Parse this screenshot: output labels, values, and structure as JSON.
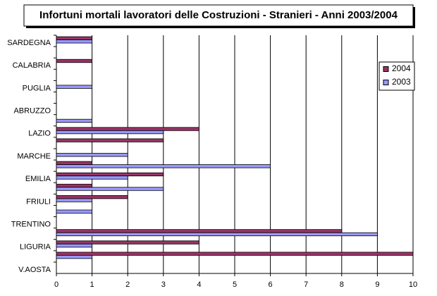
{
  "chart_data": {
    "type": "bar",
    "orientation": "horizontal",
    "title": "Infortuni mortali lavoratori delle Costruzioni - Stranieri - Anni 2003/2004",
    "categories": [
      "SARDEGNA",
      null,
      "CALABRIA",
      null,
      "PUGLIA",
      null,
      "ABRUZZO",
      null,
      "LAZIO",
      null,
      "MARCHE",
      null,
      "EMILIA",
      null,
      "FRIULI",
      null,
      "TRENTINO",
      null,
      "LIGURIA",
      null,
      "V.AOSTA"
    ],
    "series": [
      {
        "name": "2004",
        "color": "#993366",
        "values": [
          1,
          0,
          1,
          0,
          0,
          0,
          0,
          0,
          4,
          3,
          0,
          1,
          3,
          1,
          2,
          0,
          0,
          8,
          4,
          10,
          0
        ]
      },
      {
        "name": "2003",
        "color": "#9999ff",
        "values": [
          1,
          0,
          0,
          0,
          1,
          0,
          0,
          1,
          3,
          0,
          2,
          6,
          2,
          3,
          1,
          1,
          0,
          9,
          1,
          1,
          0
        ]
      }
    ],
    "xlim": [
      0,
      10
    ],
    "xticks": [
      0,
      1,
      2,
      3,
      4,
      5,
      6,
      7,
      8,
      9,
      10
    ],
    "grid": true,
    "legend": "right"
  }
}
